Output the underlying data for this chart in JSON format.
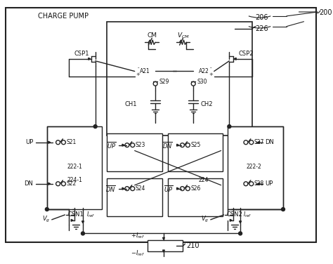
{
  "title": "CHARGE PUMP",
  "ref_200": "200",
  "ref_206": "206",
  "ref_226": "226",
  "ref_210": "210",
  "bg_color": "#ffffff",
  "border_color": "#222222",
  "line_color": "#222222",
  "text_color": "#111111",
  "figsize": [
    4.74,
    3.76
  ],
  "dpi": 100
}
